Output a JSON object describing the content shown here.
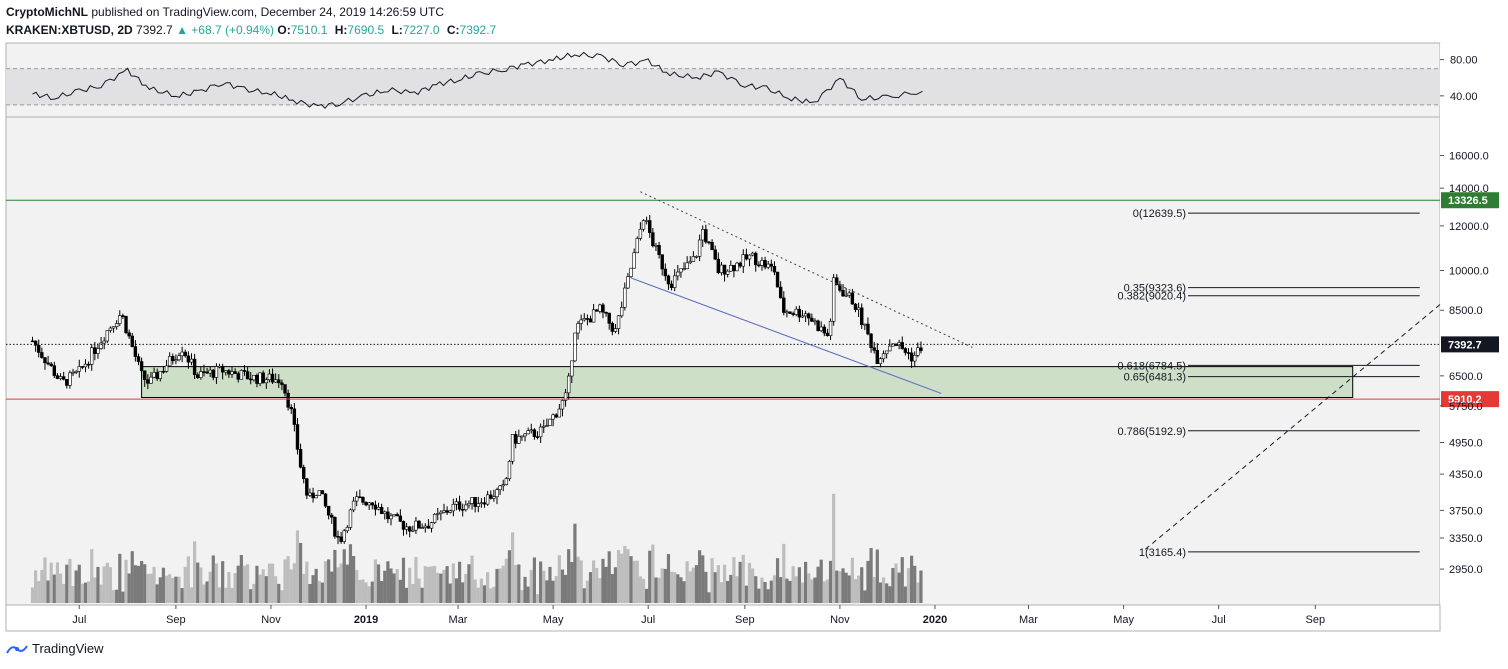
{
  "header": {
    "author": "CryptoMichNL",
    "published": "published on TradingView.com, December 24, 2019 14:26:59 UTC",
    "symbol": "KRAKEN:XBTUSD, 2D",
    "last": "7392.7",
    "change": "▲ +68.7 (+0.94%)",
    "o_label": "O:",
    "o_value": "7510.1",
    "h_label": "H:",
    "h_value": "7690.5",
    "l_label": "L:",
    "l_value": "7227.0",
    "c_label": "C:",
    "c_value": "7392.7"
  },
  "footer": {
    "brand": "TradingView",
    "logo_icon": "tradingview-logo-icon"
  },
  "colors": {
    "up": "#26a69a",
    "candle_dark": "#000000",
    "candle_light": "#ffffff",
    "support_zone": "#c8dcc0",
    "resistance_line": "#2e7d32",
    "support_line": "#e53935",
    "channel_line": "#5c6bc0"
  },
  "chart_data": [
    {
      "type": "line",
      "panel": "oscillator",
      "y_ticks": [
        "80.00",
        "40.00"
      ],
      "ylim": [
        20,
        95
      ],
      "band": [
        30,
        70
      ],
      "x_dates": [
        "2018-06-01",
        "2018-06-15",
        "2018-07-01",
        "2018-07-15",
        "2018-08-01",
        "2018-08-15",
        "2018-09-01",
        "2018-09-15",
        "2018-10-01",
        "2018-10-15",
        "2018-11-01",
        "2018-11-15",
        "2018-12-01",
        "2018-12-15",
        "2019-01-01",
        "2019-01-15",
        "2019-02-01",
        "2019-02-15",
        "2019-03-01",
        "2019-03-15",
        "2019-04-01",
        "2019-04-15",
        "2019-05-01",
        "2019-05-15",
        "2019-06-01",
        "2019-06-15",
        "2019-07-01",
        "2019-07-15",
        "2019-08-01",
        "2019-08-15",
        "2019-09-01",
        "2019-09-15",
        "2019-10-01",
        "2019-10-15",
        "2019-11-01",
        "2019-11-15",
        "2019-12-01",
        "2019-12-24"
      ],
      "values": [
        42,
        38,
        45,
        52,
        68,
        48,
        40,
        44,
        55,
        47,
        43,
        35,
        28,
        32,
        40,
        47,
        43,
        52,
        58,
        64,
        70,
        75,
        80,
        86,
        83,
        75,
        78,
        64,
        60,
        66,
        52,
        48,
        37,
        32,
        59,
        37,
        38,
        45
      ]
    },
    {
      "type": "candlestick",
      "panel": "price",
      "x_ticks": [
        "Jul",
        "Sep",
        "Nov",
        "2019",
        "Mar",
        "May",
        "Jul",
        "Sep",
        "Nov",
        "2020",
        "Mar",
        "May",
        "Jul",
        "Sep"
      ],
      "y_ticks": [
        "16000.0",
        "14000.0",
        "12000.0",
        "10000.0",
        "8500.0",
        "6500.0",
        "5750.0",
        "4950.0",
        "4350.0",
        "3750.0",
        "3350.0",
        "2950.0"
      ],
      "y_scale": "log",
      "ylim": [
        2600,
        18500
      ],
      "xlim": [
        "2018-05-15",
        "2020-11-20"
      ],
      "anchors": [
        [
          "2018-06-01",
          7500
        ],
        [
          "2018-06-20",
          6300
        ],
        [
          "2018-07-01",
          6600
        ],
        [
          "2018-07-20",
          7900
        ],
        [
          "2018-07-28",
          8400
        ],
        [
          "2018-08-10",
          6500
        ],
        [
          "2018-08-15",
          6300
        ],
        [
          "2018-09-05",
          7300
        ],
        [
          "2018-09-15",
          6500
        ],
        [
          "2018-10-01",
          6650
        ],
        [
          "2018-10-20",
          6450
        ],
        [
          "2018-11-08",
          6400
        ],
        [
          "2018-11-14",
          5600
        ],
        [
          "2018-11-20",
          4500
        ],
        [
          "2018-11-25",
          3900
        ],
        [
          "2018-12-01",
          4100
        ],
        [
          "2018-12-15",
          3300
        ],
        [
          "2018-12-25",
          3900
        ],
        [
          "2019-01-05",
          3900
        ],
        [
          "2019-01-15",
          3650
        ],
        [
          "2019-01-28",
          3500
        ],
        [
          "2019-02-10",
          3550
        ],
        [
          "2019-02-25",
          3800
        ],
        [
          "2019-03-15",
          3900
        ],
        [
          "2019-03-31",
          4100
        ],
        [
          "2019-04-05",
          5000
        ],
        [
          "2019-04-25",
          5200
        ],
        [
          "2019-05-10",
          6000
        ],
        [
          "2019-05-15",
          7900
        ],
        [
          "2019-05-31",
          8500
        ],
        [
          "2019-06-10",
          7800
        ],
        [
          "2019-06-25",
          11500
        ],
        [
          "2019-06-28",
          12500
        ],
        [
          "2019-07-05",
          11000
        ],
        [
          "2019-07-15",
          9500
        ],
        [
          "2019-07-31",
          10500
        ],
        [
          "2019-08-05",
          11800
        ],
        [
          "2019-08-15",
          10000
        ],
        [
          "2019-08-25",
          10200
        ],
        [
          "2019-09-05",
          10600
        ],
        [
          "2019-09-20",
          10000
        ],
        [
          "2019-09-25",
          8500
        ],
        [
          "2019-10-10",
          8400
        ],
        [
          "2019-10-25",
          7600
        ],
        [
          "2019-10-28",
          9500
        ],
        [
          "2019-11-10",
          8800
        ],
        [
          "2019-11-25",
          7000
        ],
        [
          "2019-12-05",
          7500
        ],
        [
          "2019-12-18",
          7000
        ],
        [
          "2019-12-24",
          7392.7
        ]
      ],
      "volume": "grey bars (relative)",
      "horizontal_levels": [
        {
          "value": 13326.5,
          "label": "13326.5",
          "color": "#2e7d32"
        },
        {
          "value": 5910.2,
          "label": "5910.2",
          "color": "#e53935"
        },
        {
          "value": 7392.7,
          "label": "7392.7",
          "color": "#131722",
          "dotted": true
        }
      ],
      "support_zone": {
        "low": 5950,
        "high": 6750,
        "from": "2018-08-10",
        "to": "2020-09-25"
      },
      "fibonacci": [
        {
          "ratio": "0",
          "value": 12639.5,
          "label": "0(12639.5)"
        },
        {
          "ratio": "0.35",
          "value": 9323.6,
          "label": "0.35(9323.6)"
        },
        {
          "ratio": "0.382",
          "value": 9020.4,
          "label": "0.382(9020.4)"
        },
        {
          "ratio": "0.618",
          "value": 6784.5,
          "label": "0.618(6784.5)"
        },
        {
          "ratio": "0.65",
          "value": 6481.3,
          "label": "0.65(6481.3)"
        },
        {
          "ratio": "0.786",
          "value": 5192.9,
          "label": "0.786(5192.9)"
        },
        {
          "ratio": "1",
          "value": 3165.4,
          "label": "1(3165.4)"
        }
      ],
      "trendlines": [
        {
          "kind": "resistance",
          "from": [
            "2019-06-26",
            13800
          ],
          "to": [
            "2020-01-25",
            7300
          ],
          "style": "dotted"
        },
        {
          "kind": "channel",
          "from": [
            "2019-06-20",
            9700
          ],
          "to": [
            "2020-01-05",
            6050
          ],
          "style": "solid"
        },
        {
          "kind": "projection",
          "from": [
            "2020-05-15",
            3200
          ],
          "to": [
            "2020-11-20",
            8700
          ],
          "style": "dashed"
        }
      ]
    }
  ]
}
